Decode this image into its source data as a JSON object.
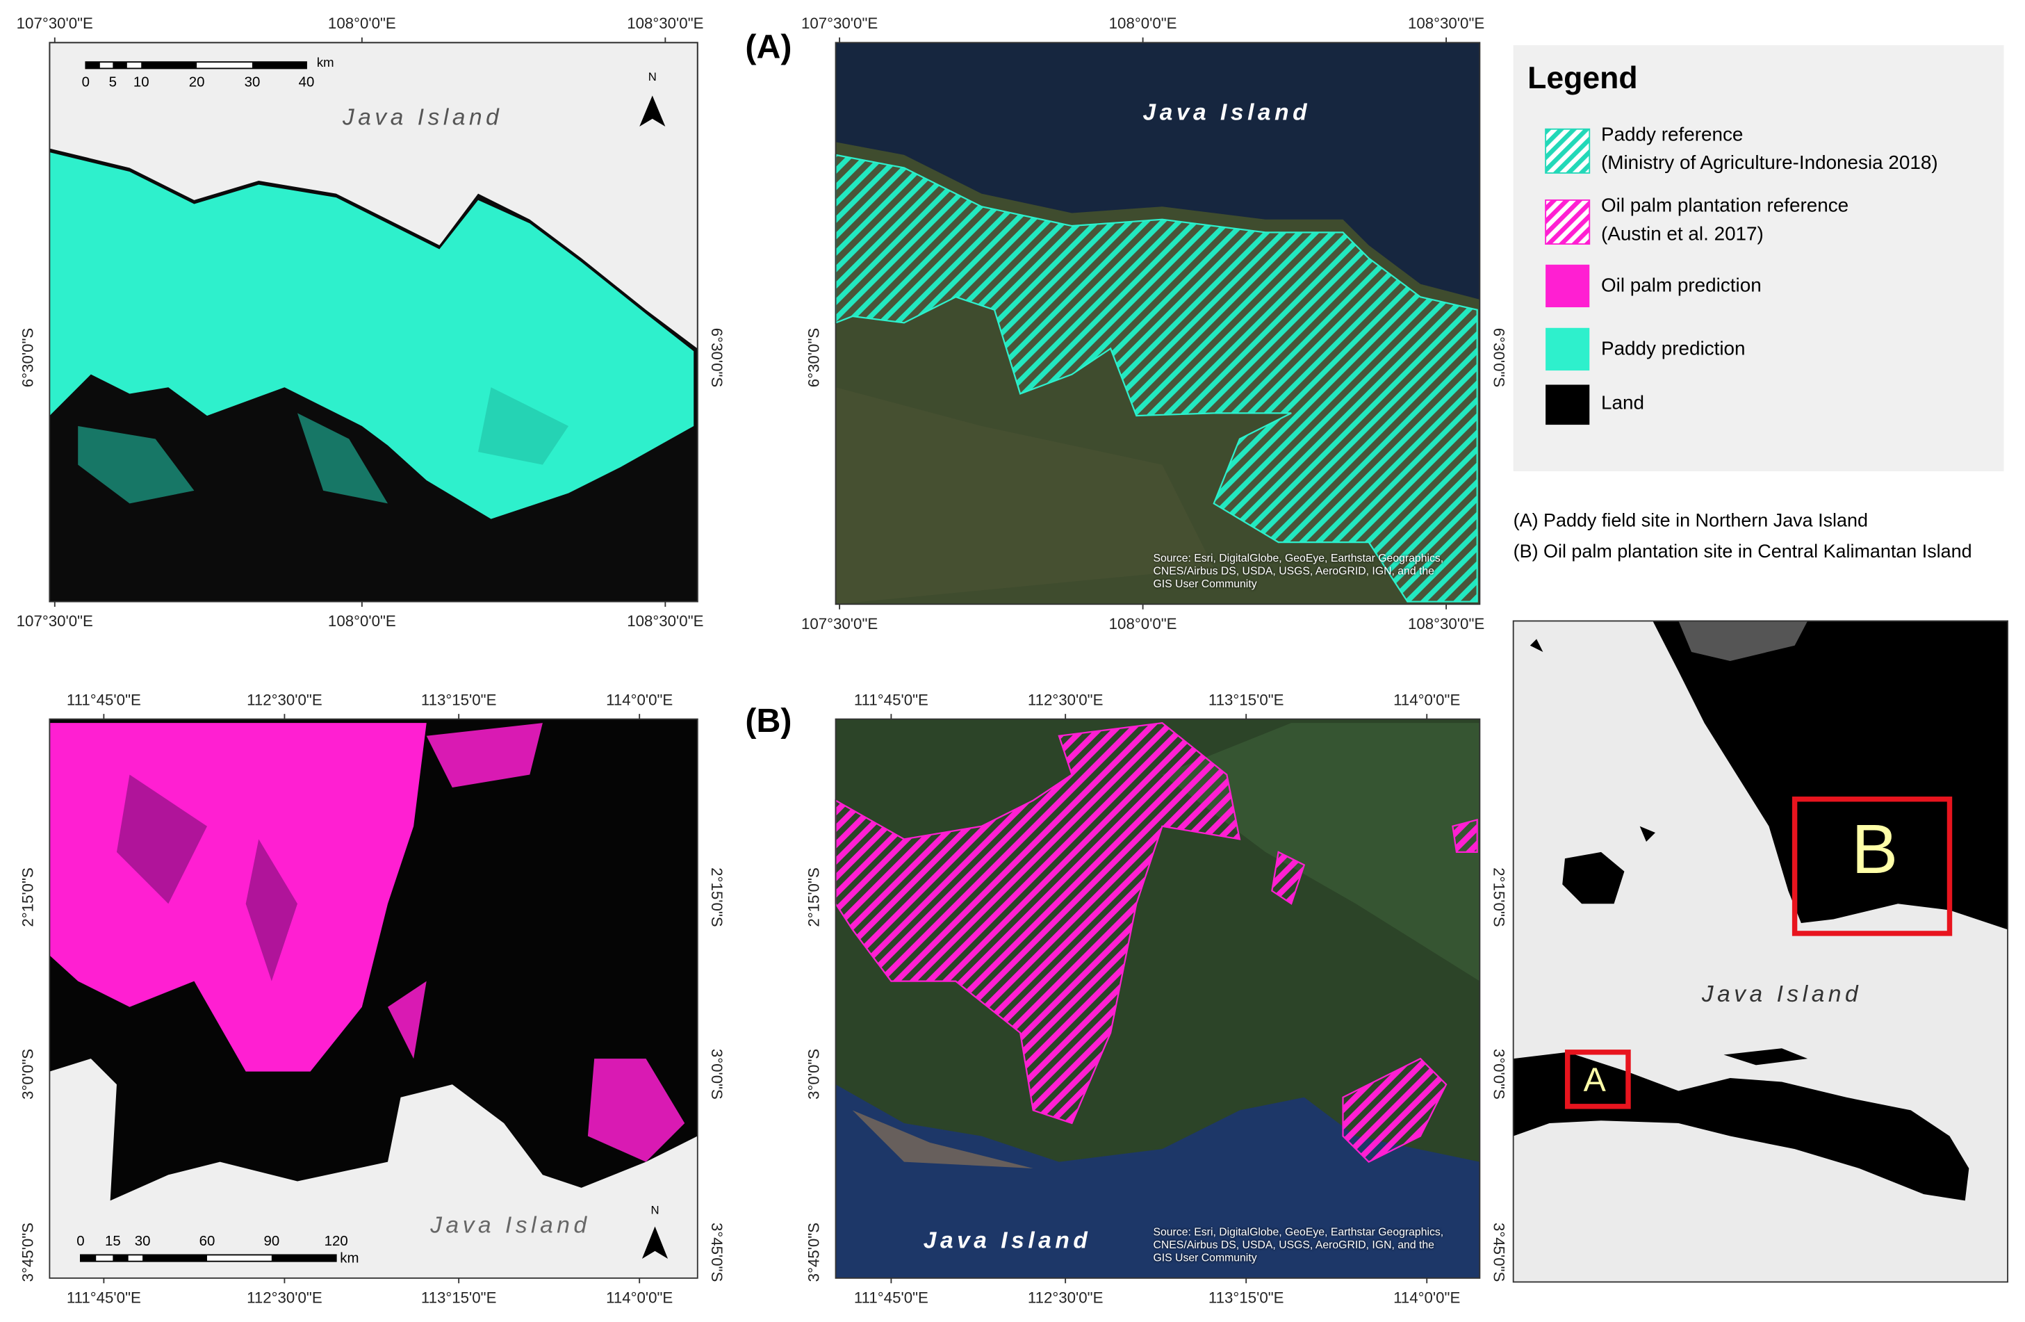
{
  "panels": {
    "paddy_prediction": {
      "top_ticks": [
        "107°30'0\"E",
        "108°0'0\"E",
        "108°30'0\"E"
      ],
      "bottom_ticks": [
        "107°30'0\"E",
        "108°0'0\"E",
        "108°30'0\"E"
      ],
      "left_ticks": [
        "6°30'0\"S"
      ],
      "right_ticks": [
        "6°30'0\"S"
      ],
      "place_label": "Java Island",
      "north_arrow": "N",
      "scale_bar": {
        "ticks": [
          "0",
          "5",
          "10",
          "20",
          "30",
          "40"
        ],
        "unit": "km"
      }
    },
    "paddy_reference": {
      "label": "(A)",
      "top_ticks": [
        "107°30'0\"E",
        "108°0'0\"E",
        "108°30'0\"E"
      ],
      "bottom_ticks": [
        "107°30'0\"E",
        "108°0'0\"E",
        "108°30'0\"E"
      ],
      "left_ticks": [
        "6°30'0\"S"
      ],
      "right_ticks": [
        "6°30'0\"S"
      ],
      "place_label": "Java Island",
      "attribution": "Source: Esri, DigitalGlobe, GeoEye, Earthstar Geographics, CNES/Airbus DS, USDA, USGS, AeroGRID, IGN, and the GIS User Community"
    },
    "oil_palm_prediction": {
      "top_ticks": [
        "111°45'0\"E",
        "112°30'0\"E",
        "113°15'0\"E",
        "114°0'0\"E"
      ],
      "bottom_ticks": [
        "111°45'0\"E",
        "112°30'0\"E",
        "113°15'0\"E",
        "114°0'0\"E"
      ],
      "left_ticks": [
        "2°15'0\"S",
        "3°0'0\"S",
        "3°45'0\"S"
      ],
      "right_ticks": [
        "2°15'0\"S",
        "3°0'0\"S",
        "3°45'0\"S"
      ],
      "place_label": "Java Island",
      "north_arrow": "N",
      "scale_bar": {
        "ticks": [
          "0",
          "15",
          "30",
          "60",
          "90",
          "120"
        ],
        "unit": "km"
      }
    },
    "oil_palm_reference": {
      "label": "(B)",
      "top_ticks": [
        "111°45'0\"E",
        "112°30'0\"E",
        "113°15'0\"E",
        "114°0'0\"E"
      ],
      "bottom_ticks": [
        "111°45'0\"E",
        "112°30'0\"E",
        "113°15'0\"E",
        "114°0'0\"E"
      ],
      "left_ticks": [
        "2°15'0\"S",
        "3°0'0\"S",
        "3°45'0\"S"
      ],
      "right_ticks": [
        "2°15'0\"S",
        "3°0'0\"S",
        "3°45'0\"S"
      ],
      "place_label": "Java Island",
      "attribution": "Source: Esri, DigitalGlobe, GeoEye, Earthstar Geographics, CNES/Airbus DS, USDA, USGS, AeroGRID, IGN, and the GIS User Community"
    },
    "overview": {
      "place_label": "Java Island",
      "box_labels": [
        "A",
        "B"
      ]
    }
  },
  "legend": {
    "title": "Legend",
    "items": [
      {
        "label": "Paddy reference",
        "sublabel": "(Ministry of Agriculture-Indonesia 2018)"
      },
      {
        "label": "Oil palm plantation reference",
        "sublabel": "(Austin et al. 2017)"
      },
      {
        "label": "Oil palm prediction"
      },
      {
        "label": "Paddy prediction"
      },
      {
        "label": "Land"
      }
    ]
  },
  "notes": [
    "(A) Paddy field site in Northern Java Island",
    "(B) Oil palm plantation site in Central Kalimantan Island"
  ]
}
